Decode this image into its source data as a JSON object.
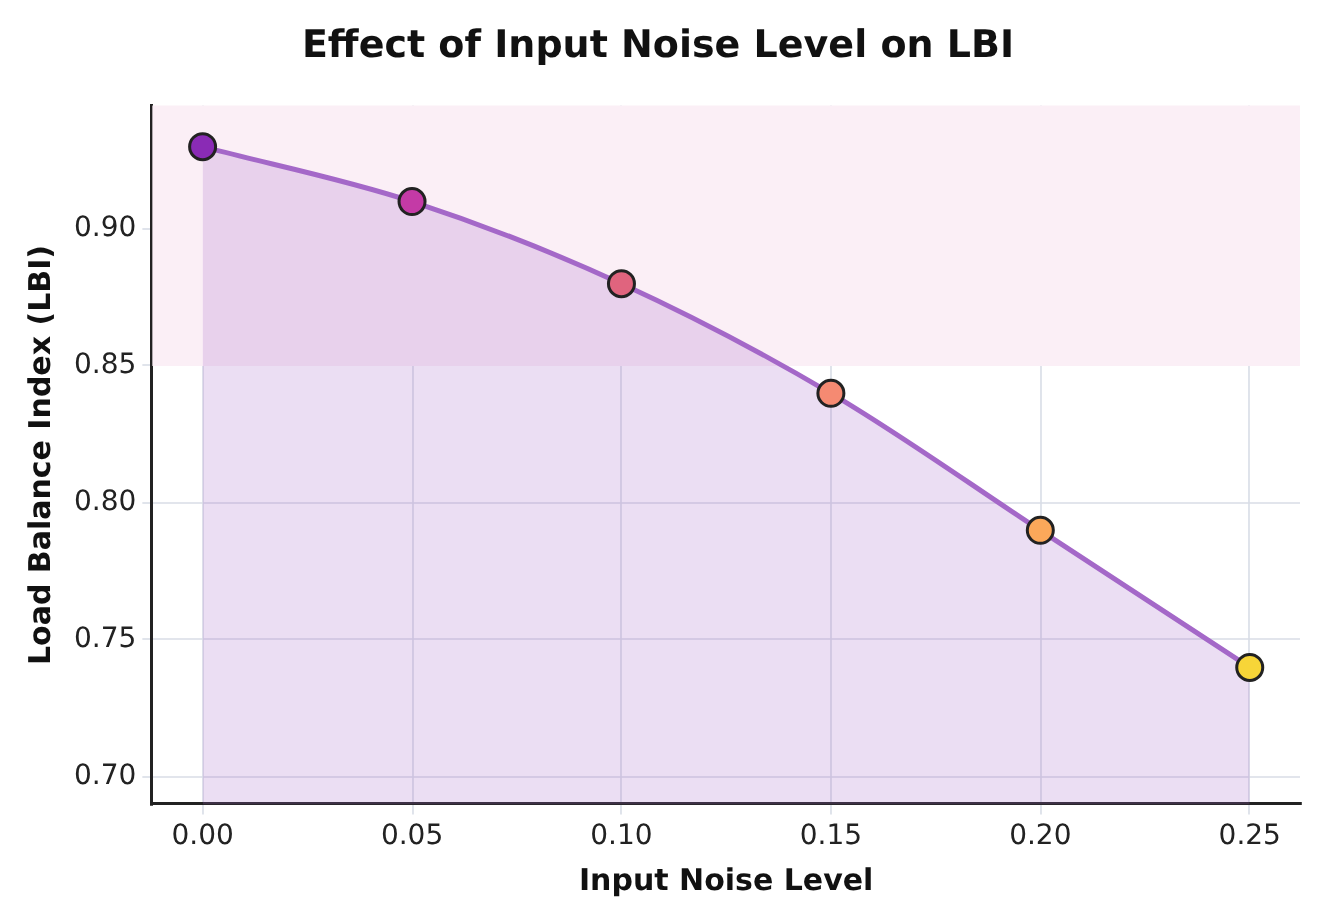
{
  "chart_data": {
    "type": "area",
    "title": "Effect of Input Noise Level on LBI",
    "xlabel": "Input Noise Level",
    "ylabel": "Load Balance Index (LBI)",
    "x": [
      0,
      0.05,
      0.1,
      0.15,
      0.2,
      0.25
    ],
    "series": [
      {
        "color": "#a468c8",
        "colors": [
          "#8a2bb5",
          "#c43aa6",
          "#e0647e",
          "#f58a72",
          "#fba85a",
          "#f7d538"
        ],
        "values": [
          0.93,
          0.91,
          0.88,
          0.84,
          0.79,
          0.74
        ]
      }
    ],
    "xlim": [
      -0.012,
      0.262
    ],
    "ylim": [
      0.69,
      0.945
    ],
    "xticks": [
      {
        "value": 0,
        "label": "0.00"
      },
      {
        "value": 0.05,
        "label": "0.05"
      },
      {
        "value": 0.1,
        "label": "0.10"
      },
      {
        "value": 0.15,
        "label": "0.15"
      },
      {
        "value": 0.2,
        "label": "0.20"
      },
      {
        "value": 0.25,
        "label": "0.25"
      }
    ],
    "yticks": [
      {
        "value": 0.7,
        "label": "0.70"
      },
      {
        "value": 0.75,
        "label": "0.75"
      },
      {
        "value": 0.8,
        "label": "0.80"
      },
      {
        "value": 0.85,
        "label": "0.85"
      },
      {
        "value": 0.9,
        "label": "0.90"
      }
    ],
    "bands": [
      {
        "axis": "y",
        "from": 0.85,
        "to": 0.945,
        "color": "#fbeff6"
      }
    ],
    "grid": true,
    "marker": "circle",
    "line_style": "solid",
    "legend": false
  }
}
